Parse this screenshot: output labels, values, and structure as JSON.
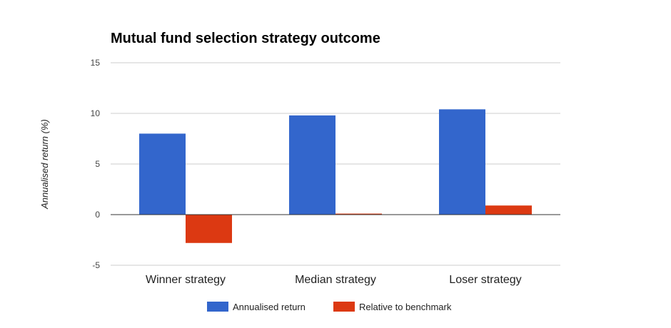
{
  "chart_data": {
    "type": "bar",
    "title": "Mutual fund selection strategy outcome",
    "xlabel": "",
    "ylabel": "Annualised return (%)",
    "ylim": [
      -5,
      15
    ],
    "yticks": [
      15,
      10,
      5,
      0,
      -5
    ],
    "categories": [
      "Winner strategy",
      "Median strategy",
      "Loser strategy"
    ],
    "series": [
      {
        "name": "Annualised return",
        "color": "#3366cc",
        "values": [
          8.0,
          9.8,
          10.4
        ]
      },
      {
        "name": "Relative to benchmark",
        "color": "#dc3912",
        "values": [
          -2.8,
          0.1,
          0.9
        ]
      }
    ],
    "grid": true,
    "legend_position": "bottom"
  }
}
